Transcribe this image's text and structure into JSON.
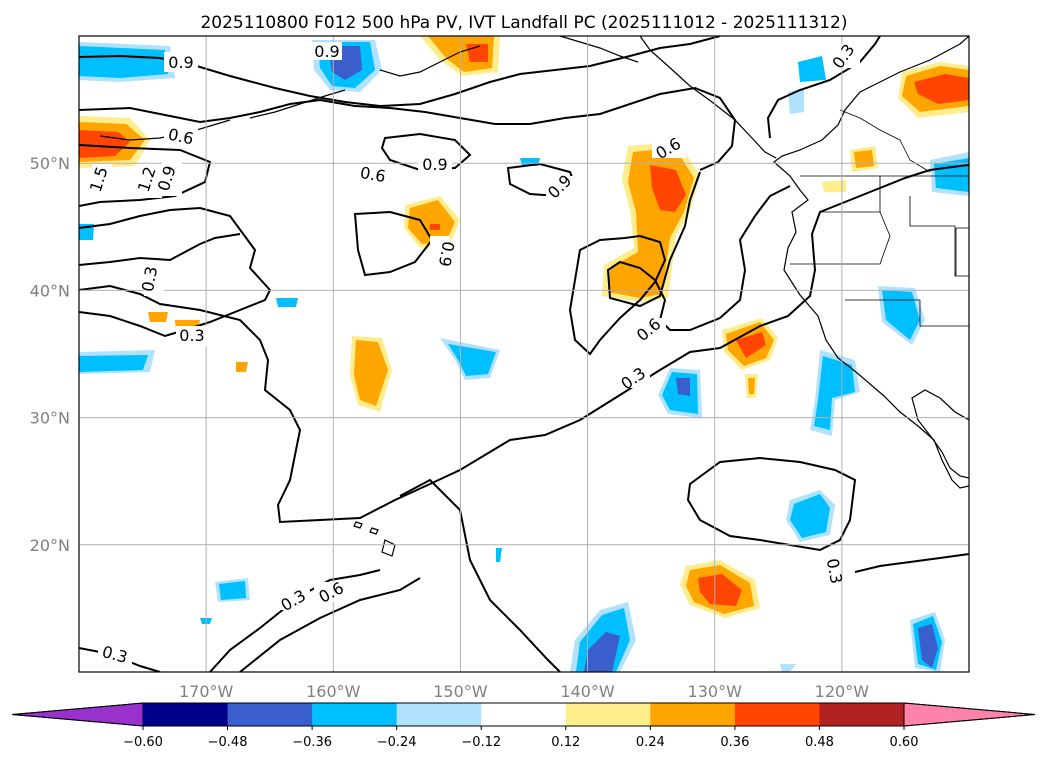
{
  "title": "2025110800 F012 500 hPa PV, IVT Landfall PC (2025111012 - 2025111312)",
  "map": {
    "lon_range": [
      -180,
      -110
    ],
    "lat_range": [
      10,
      60
    ],
    "lon_ticks": [
      {
        "value": -170,
        "label": "170°W"
      },
      {
        "value": -160,
        "label": "160°W"
      },
      {
        "value": -150,
        "label": "150°W"
      },
      {
        "value": -140,
        "label": "140°W"
      },
      {
        "value": -130,
        "label": "130°W"
      },
      {
        "value": -120,
        "label": "120°W"
      }
    ],
    "lat_ticks": [
      {
        "value": 50,
        "label": "50°N"
      },
      {
        "value": 40,
        "label": "40°N"
      },
      {
        "value": 30,
        "label": "30°N"
      },
      {
        "value": 20,
        "label": "20°N"
      }
    ],
    "contour_labels": [
      "0.9",
      "0.6",
      "0.9",
      "0.6",
      "0.9",
      "1.5",
      "1.2",
      "0.9",
      "0.9",
      "0.6",
      "0.9",
      "0.3",
      "0.3",
      "0.6",
      "0.3",
      "0.3",
      "0.6",
      "0.3",
      "0.3",
      "0.3"
    ]
  },
  "colorbar": {
    "tick_labels": [
      "−0.60",
      "−0.48",
      "−0.36",
      "−0.24",
      "−0.12",
      "0.12",
      "0.24",
      "0.36",
      "0.48",
      "0.60"
    ],
    "colors": [
      "#9932cc",
      "#00008b",
      "#3a5fcd",
      "#00bfff",
      "#b0e2ff",
      "#ffffff",
      "#ffec8b",
      "#ffa500",
      "#ff4500",
      "#b22222",
      "#ff82ab"
    ]
  }
}
